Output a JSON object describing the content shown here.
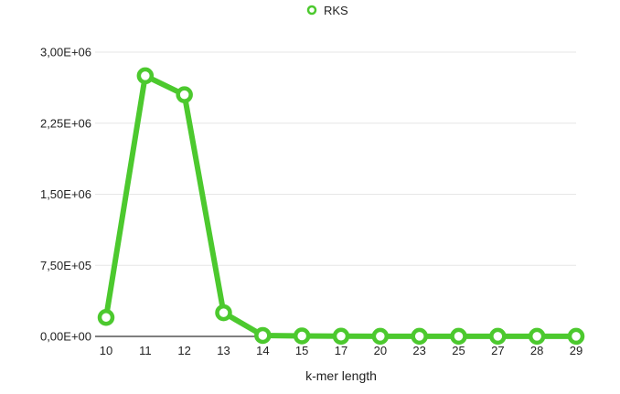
{
  "chart_data": {
    "type": "line",
    "title": "",
    "xlabel": "k-mer length",
    "ylabel": "",
    "categories": [
      "10",
      "11",
      "12",
      "13",
      "14",
      "15",
      "17",
      "20",
      "23",
      "25",
      "27",
      "28",
      "29"
    ],
    "series": [
      {
        "name": "RKS",
        "color": "#4cc92e",
        "values": [
          200000,
          2750000,
          2550000,
          250000,
          10000,
          5000,
          2000,
          1000,
          1000,
          1000,
          1000,
          1000,
          1000
        ]
      }
    ],
    "ylim": [
      0,
      3000000
    ],
    "yticks": [
      0,
      750000,
      1500000,
      2250000,
      3000000
    ],
    "ytick_labels": [
      "0,00E+00",
      "7,50E+05",
      "1,50E+06",
      "2,25E+06",
      "3,00E+06"
    ],
    "grid": true,
    "legend_position": "top"
  }
}
